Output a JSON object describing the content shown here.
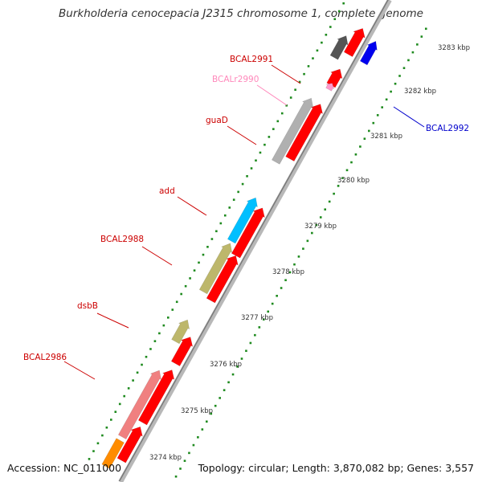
{
  "title": "Burkholderia cenocepacia J2315 chromosome 1, complete genome",
  "footer": {
    "accession": "Accession: NC_011000",
    "topology": "Topology: circular; Length: 3,870,082 bp; Genes: 3,557"
  },
  "colors": {
    "backbone": "#9a9a9a",
    "tick": "#1e8a1e",
    "scale_text": "#333333",
    "cds_forward": "#ff0000",
    "label_default": "#cc0000"
  },
  "scale_labels": [
    "3274 kbp",
    "3275 kbp",
    "3276 kbp",
    "3277 kbp",
    "3278 kbp",
    "3279 kbp",
    "3280 kbp",
    "3281 kbp",
    "3282 kbp",
    "3283 kbp"
  ],
  "genes": [
    {
      "label": "BCAL2986",
      "color": "#cc0000",
      "fill": "#f08080"
    },
    {
      "label": "dsbB",
      "color": "#cc0000",
      "fill": "#bdb76b"
    },
    {
      "label": "BCAL2988",
      "color": "#cc0000",
      "fill": "#bdb76b"
    },
    {
      "label": "add",
      "color": "#cc0000",
      "fill": "#00bfff"
    },
    {
      "label": "guaD",
      "color": "#cc0000",
      "fill": "#b0b0b0"
    },
    {
      "label": "BCALr2990",
      "color": "#ff88bb",
      "fill": "#ff99cc"
    },
    {
      "label": "BCAL2991",
      "color": "#cc0000",
      "fill": "#555555"
    },
    {
      "label": "BCAL2992",
      "color": "#0000cc",
      "fill": "#0000ee"
    }
  ],
  "unlabeled_features": [
    {
      "name": "orange-feature",
      "fill": "#ff8c00"
    },
    {
      "name": "steelblue-feature",
      "fill": "#4682b4"
    }
  ]
}
